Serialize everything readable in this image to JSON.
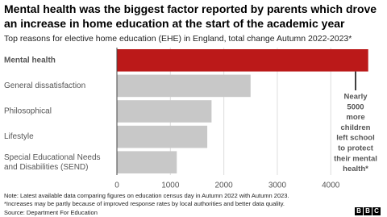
{
  "chart_data": {
    "type": "hbar",
    "title": "Mental health was the biggest factor reported by parents which drove an increase in home education at the start of the academic year",
    "subtitle": "Top reasons for elective home education (EHE) in England, total change Autumn 2022-2023*",
    "categories": [
      "Mental health",
      "General dissatisfaction",
      "Philosophical",
      "Lifestyle",
      "Special Educational Needs and Disabilities (SEND)"
    ],
    "values": [
      4700,
      2500,
      1770,
      1690,
      1120
    ],
    "colors": [
      "#bb1919",
      "#c8c8c8",
      "#c8c8c8",
      "#c8c8c8",
      "#c8c8c8"
    ],
    "xlim": [
      0,
      4750
    ],
    "xticks": [
      0,
      1000,
      2000,
      3000,
      4000
    ],
    "grid": true,
    "annotation_lines": [
      "Nearly",
      "5000",
      "more",
      "children",
      "left school",
      "to protect",
      "their mental",
      "health*"
    ],
    "notes": [
      "Note: Latest available data comparing figures on education census day in Autumn 2022 with Autumn 2023.",
      "*Increases may be partly because of improved response rates by local authorities and better data quality."
    ],
    "source": "Source: Department For Education",
    "branding": [
      "B",
      "B",
      "C"
    ]
  }
}
